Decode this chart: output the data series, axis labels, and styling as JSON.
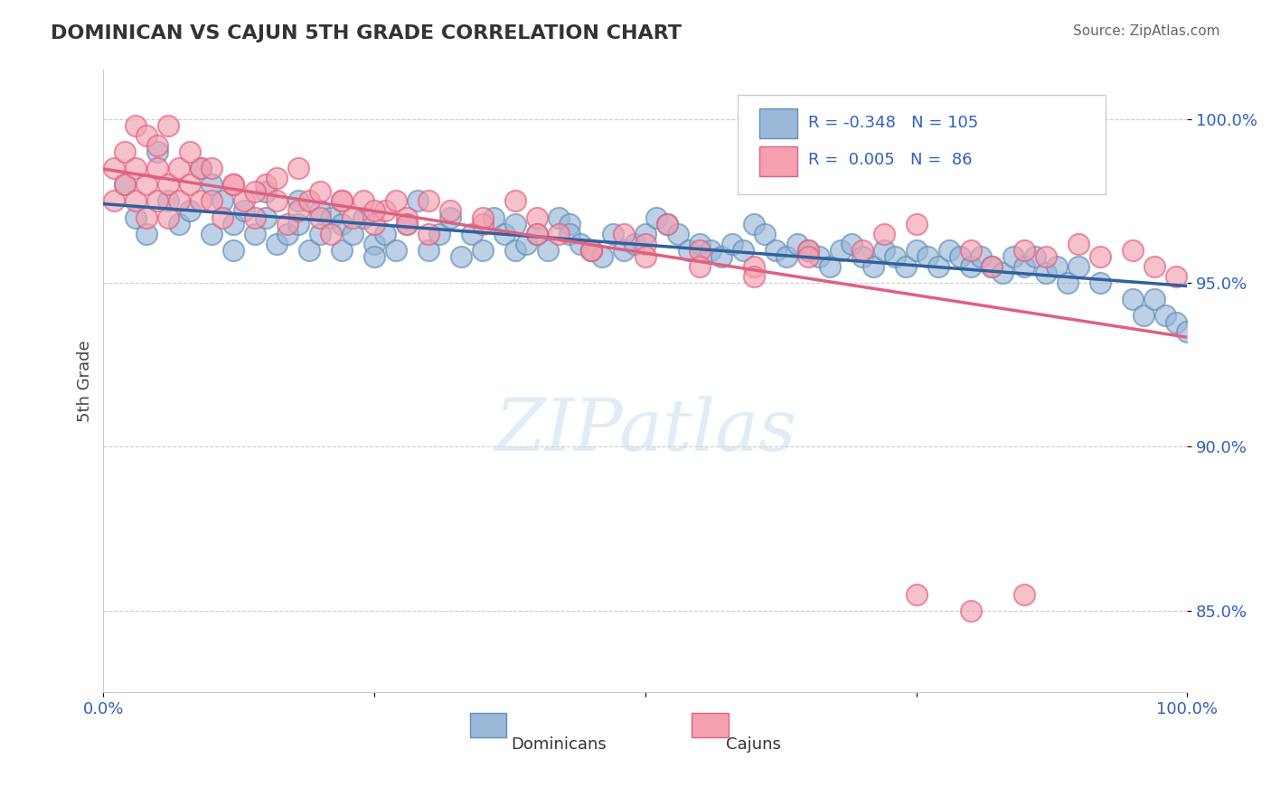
{
  "title": "DOMINICAN VS CAJUN 5TH GRADE CORRELATION CHART",
  "source_text": "Source: ZipAtlas.com",
  "xlabel": "",
  "ylabel": "5th Grade",
  "watermark": "ZIPatlas",
  "x_min": 0.0,
  "x_max": 1.0,
  "y_min": 0.825,
  "y_max": 1.015,
  "y_ticks": [
    0.85,
    0.9,
    0.95,
    1.0
  ],
  "y_tick_labels": [
    "85.0%",
    "90.0%",
    "95.0%",
    "100.0%"
  ],
  "x_ticks": [
    0.0,
    0.25,
    0.5,
    0.75,
    1.0
  ],
  "x_tick_labels": [
    "0.0%",
    "",
    "",
    "",
    "100.0%"
  ],
  "dominican_color": "#9ab8d8",
  "cajun_color": "#f4a0b0",
  "dominican_edge_color": "#6090b8",
  "cajun_edge_color": "#e06080",
  "regression_blue_color": "#3060a0",
  "regression_pink_color": "#e06080",
  "legend_R1": "-0.348",
  "legend_N1": "105",
  "legend_R2": "0.005",
  "legend_N2": "86",
  "legend_color": "#3060c0",
  "blue_scatter_x": [
    0.02,
    0.03,
    0.04,
    0.05,
    0.06,
    0.07,
    0.08,
    0.09,
    0.1,
    0.1,
    0.11,
    0.12,
    0.12,
    0.13,
    0.14,
    0.15,
    0.15,
    0.16,
    0.17,
    0.18,
    0.18,
    0.19,
    0.2,
    0.2,
    0.21,
    0.22,
    0.22,
    0.23,
    0.24,
    0.25,
    0.25,
    0.26,
    0.27,
    0.28,
    0.29,
    0.3,
    0.31,
    0.32,
    0.33,
    0.34,
    0.35,
    0.36,
    0.37,
    0.38,
    0.38,
    0.39,
    0.4,
    0.41,
    0.42,
    0.43,
    0.43,
    0.44,
    0.45,
    0.46,
    0.47,
    0.48,
    0.49,
    0.5,
    0.51,
    0.52,
    0.53,
    0.54,
    0.55,
    0.56,
    0.57,
    0.58,
    0.59,
    0.6,
    0.61,
    0.62,
    0.63,
    0.64,
    0.65,
    0.66,
    0.67,
    0.68,
    0.69,
    0.7,
    0.71,
    0.72,
    0.73,
    0.74,
    0.75,
    0.76,
    0.77,
    0.78,
    0.79,
    0.8,
    0.81,
    0.82,
    0.83,
    0.84,
    0.85,
    0.86,
    0.87,
    0.88,
    0.89,
    0.9,
    0.92,
    0.95,
    0.96,
    0.97,
    0.98,
    0.99,
    1.0
  ],
  "blue_scatter_y": [
    0.98,
    0.97,
    0.965,
    0.99,
    0.975,
    0.968,
    0.972,
    0.985,
    0.98,
    0.965,
    0.975,
    0.96,
    0.968,
    0.972,
    0.965,
    0.97,
    0.978,
    0.962,
    0.965,
    0.968,
    0.975,
    0.96,
    0.965,
    0.972,
    0.97,
    0.96,
    0.968,
    0.965,
    0.97,
    0.962,
    0.958,
    0.965,
    0.96,
    0.968,
    0.975,
    0.96,
    0.965,
    0.97,
    0.958,
    0.965,
    0.96,
    0.97,
    0.965,
    0.96,
    0.968,
    0.962,
    0.965,
    0.96,
    0.97,
    0.968,
    0.965,
    0.962,
    0.96,
    0.958,
    0.965,
    0.96,
    0.962,
    0.965,
    0.97,
    0.968,
    0.965,
    0.96,
    0.962,
    0.96,
    0.958,
    0.962,
    0.96,
    0.968,
    0.965,
    0.96,
    0.958,
    0.962,
    0.96,
    0.958,
    0.955,
    0.96,
    0.962,
    0.958,
    0.955,
    0.96,
    0.958,
    0.955,
    0.96,
    0.958,
    0.955,
    0.96,
    0.958,
    0.955,
    0.958,
    0.955,
    0.953,
    0.958,
    0.955,
    0.958,
    0.953,
    0.955,
    0.95,
    0.955,
    0.95,
    0.945,
    0.94,
    0.945,
    0.94,
    0.938,
    0.935
  ],
  "pink_scatter_x": [
    0.01,
    0.01,
    0.02,
    0.02,
    0.03,
    0.03,
    0.04,
    0.04,
    0.05,
    0.05,
    0.06,
    0.06,
    0.07,
    0.07,
    0.08,
    0.09,
    0.09,
    0.1,
    0.11,
    0.12,
    0.13,
    0.14,
    0.15,
    0.16,
    0.17,
    0.18,
    0.19,
    0.2,
    0.21,
    0.22,
    0.23,
    0.24,
    0.25,
    0.26,
    0.27,
    0.28,
    0.3,
    0.32,
    0.35,
    0.38,
    0.4,
    0.42,
    0.45,
    0.48,
    0.5,
    0.52,
    0.55,
    0.6,
    0.65,
    0.72,
    0.75,
    0.8,
    0.82,
    0.85,
    0.87,
    0.9,
    0.92,
    0.95,
    0.97,
    0.99,
    0.03,
    0.04,
    0.05,
    0.06,
    0.08,
    0.1,
    0.12,
    0.14,
    0.16,
    0.18,
    0.2,
    0.22,
    0.25,
    0.28,
    0.3,
    0.35,
    0.4,
    0.45,
    0.5,
    0.55,
    0.6,
    0.65,
    0.7,
    0.75,
    0.8,
    0.85
  ],
  "pink_scatter_y": [
    0.985,
    0.975,
    0.98,
    0.99,
    0.985,
    0.975,
    0.98,
    0.97,
    0.985,
    0.975,
    0.98,
    0.97,
    0.975,
    0.985,
    0.98,
    0.975,
    0.985,
    0.975,
    0.97,
    0.98,
    0.975,
    0.97,
    0.98,
    0.975,
    0.968,
    0.972,
    0.975,
    0.97,
    0.965,
    0.975,
    0.97,
    0.975,
    0.968,
    0.972,
    0.975,
    0.97,
    0.965,
    0.972,
    0.968,
    0.975,
    0.97,
    0.965,
    0.96,
    0.965,
    0.962,
    0.968,
    0.96,
    0.955,
    0.96,
    0.965,
    0.968,
    0.96,
    0.955,
    0.96,
    0.958,
    0.962,
    0.958,
    0.96,
    0.955,
    0.952,
    0.998,
    0.995,
    0.992,
    0.998,
    0.99,
    0.985,
    0.98,
    0.978,
    0.982,
    0.985,
    0.978,
    0.975,
    0.972,
    0.968,
    0.975,
    0.97,
    0.965,
    0.96,
    0.958,
    0.955,
    0.952,
    0.958,
    0.96,
    0.855,
    0.85,
    0.855
  ]
}
